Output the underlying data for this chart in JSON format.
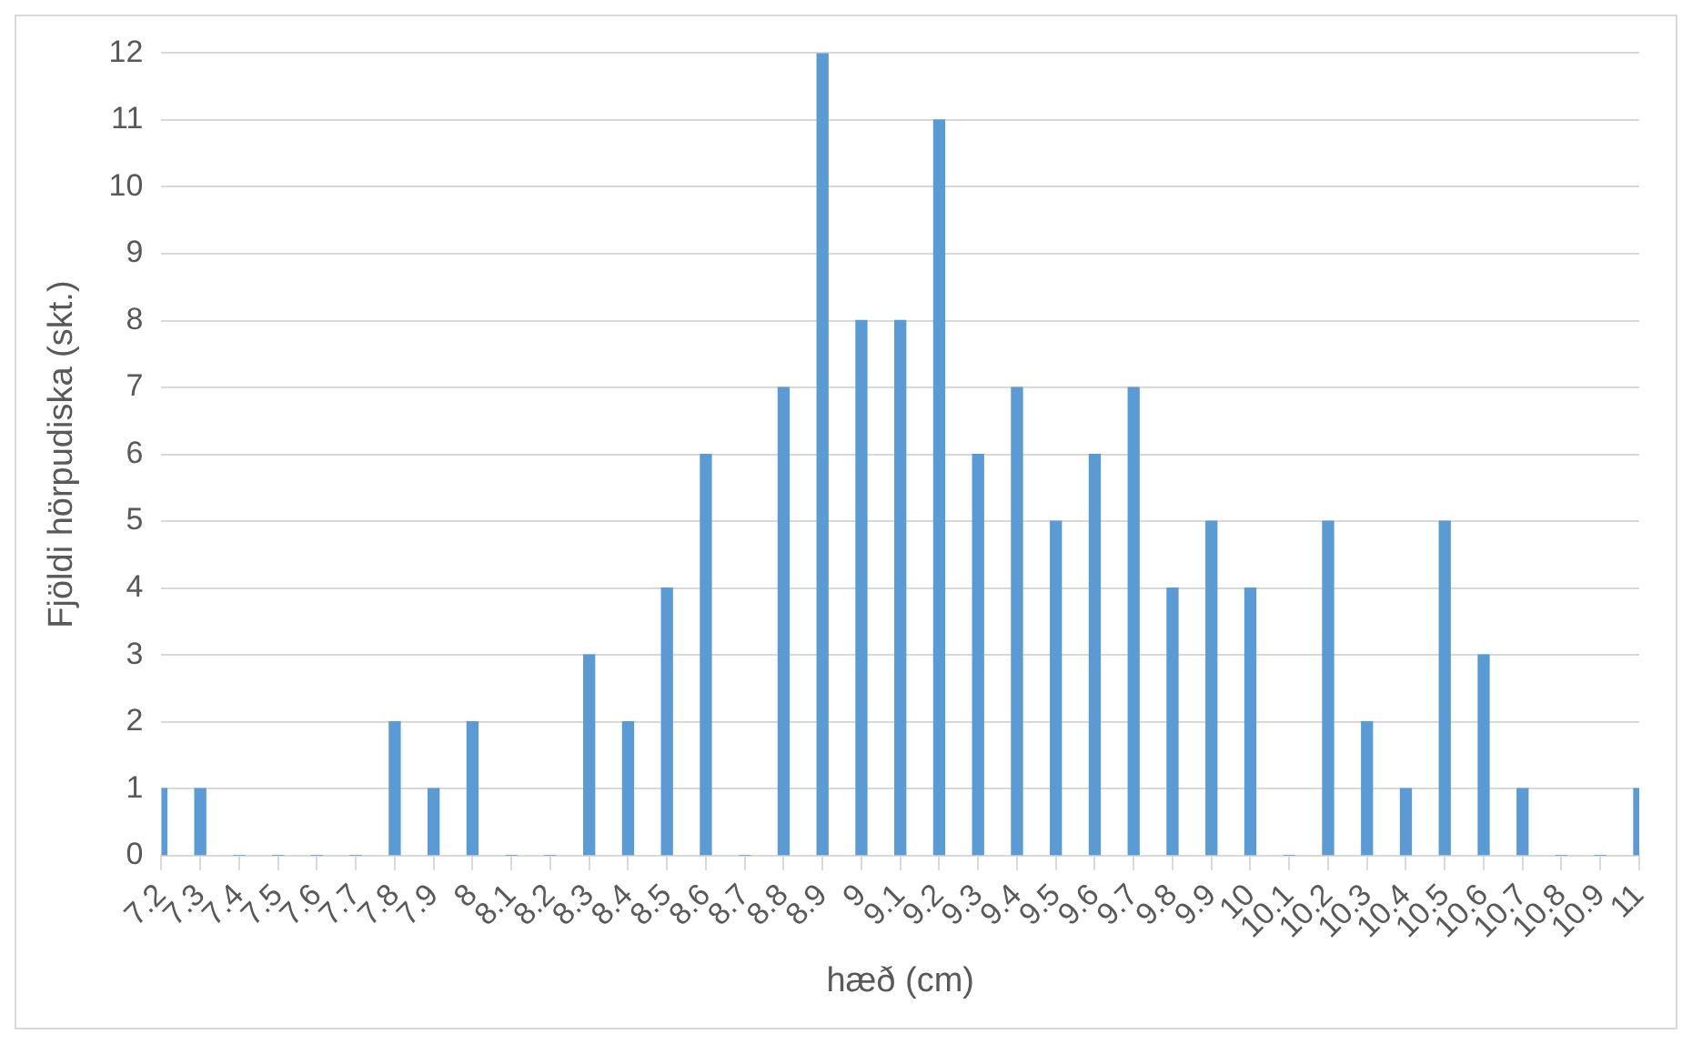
{
  "chart_data": {
    "type": "bar",
    "xlabel": "hæð (cm)",
    "ylabel": "Fjöldi hörpudiska (skt.)",
    "categories": [
      "7.2",
      "7.3",
      "7.4",
      "7.5",
      "7.6",
      "7.7",
      "7.8",
      "7.9",
      "8",
      "8.1",
      "8.2",
      "8.3",
      "8.4",
      "8.5",
      "8.6",
      "8.7",
      "8.8",
      "8.9",
      "9",
      "9.1",
      "9.2",
      "9.3",
      "9.4",
      "9.5",
      "9.6",
      "9.7",
      "9.8",
      "9.9",
      "10",
      "10.1",
      "10.2",
      "10.3",
      "10.4",
      "10.5",
      "10.6",
      "10.7",
      "10.8",
      "10.9",
      "11"
    ],
    "values": [
      1,
      1,
      0,
      0,
      0,
      0,
      2,
      1,
      2,
      0,
      0,
      3,
      2,
      4,
      6,
      0,
      7,
      12,
      8,
      8,
      11,
      6,
      7,
      5,
      6,
      7,
      4,
      5,
      4,
      0,
      5,
      2,
      1,
      5,
      3,
      1,
      0,
      0,
      1
    ],
    "color": "#5b9bd5",
    "ylim": [
      0,
      12
    ],
    "yticks": [
      0,
      1,
      2,
      3,
      4,
      5,
      6,
      7,
      8,
      9,
      10,
      11,
      12
    ],
    "grid": "y",
    "legend": false
  }
}
